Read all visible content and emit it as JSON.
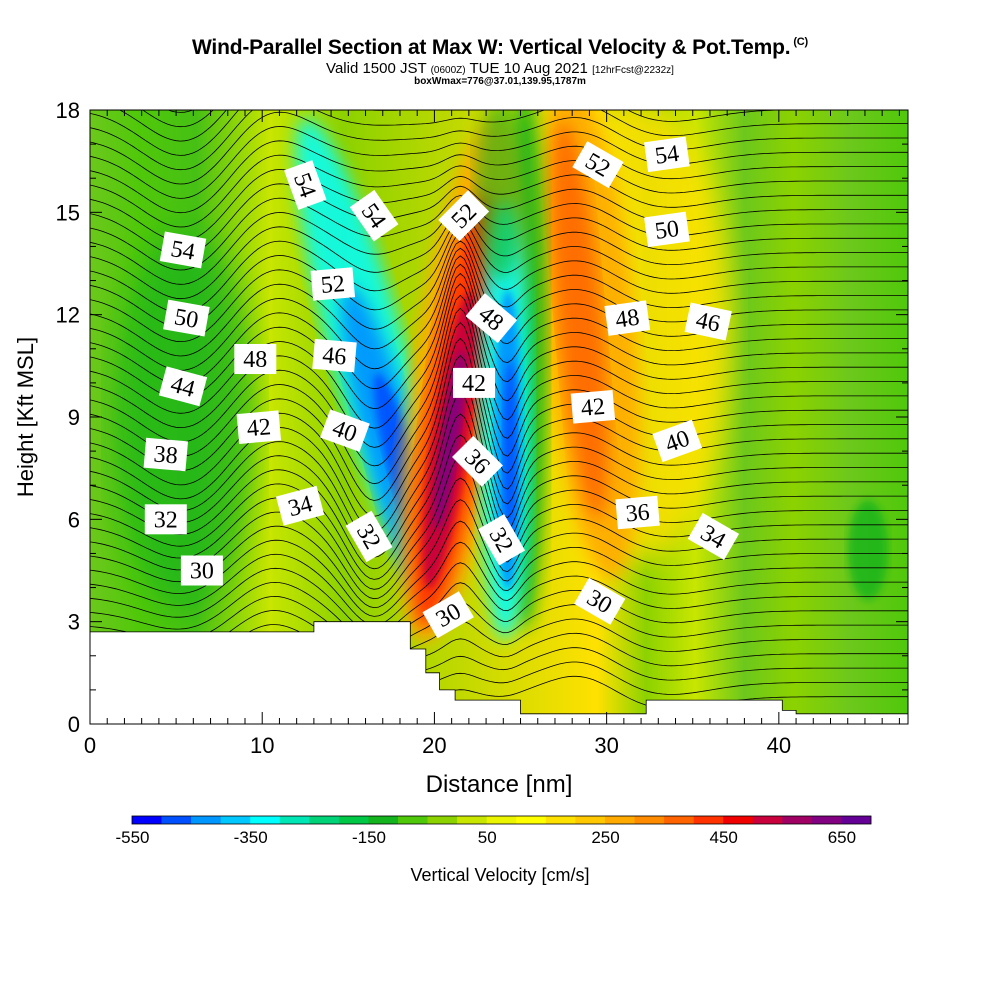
{
  "header": {
    "title": "Wind-Parallel Section at Max W: Vertical Velocity & Pot.Temp.",
    "copyright": "(C)",
    "valid_prefix": "Valid 1500 JST",
    "valid_utc": "(0600Z)",
    "valid_date": "TUE 10 Aug 2021",
    "forecast": "[12hrFcst@2232z]",
    "box_info": "boxWmax=776@37.01,139.95,1787m"
  },
  "chart_data": {
    "type": "heatmap",
    "xlabel": "Distance [nm]",
    "ylabel": "Height [Kft MSL]",
    "xlim": [
      0,
      47.5
    ],
    "ylim": [
      0,
      18
    ],
    "xticks": [
      0,
      10,
      20,
      30,
      40
    ],
    "yticks": [
      0,
      3,
      6,
      9,
      12,
      15,
      18
    ],
    "colorbar": {
      "label": "Vertical Velocity [cm/s]",
      "tick_labels": [
        -550,
        -350,
        -150,
        50,
        250,
        450,
        650
      ],
      "colors": [
        "#0000ff",
        "#0050ff",
        "#0096ff",
        "#00c8ff",
        "#00ffff",
        "#00e6b4",
        "#00d278",
        "#00c846",
        "#14b41e",
        "#50c80a",
        "#8cd200",
        "#c8e600",
        "#ebf500",
        "#ffff00",
        "#ffe100",
        "#ffc800",
        "#ffaa00",
        "#ff8c00",
        "#ff6400",
        "#ff3200",
        "#f00000",
        "#c8003c",
        "#a00064",
        "#820082",
        "#640096"
      ]
    },
    "terrain_kft": [
      [
        0,
        2.7
      ],
      [
        13,
        2.7
      ],
      [
        13,
        3.0
      ],
      [
        18.6,
        3.0
      ],
      [
        18.6,
        2.2
      ],
      [
        19.5,
        2.2
      ],
      [
        19.5,
        1.5
      ],
      [
        20.3,
        1.5
      ],
      [
        20.3,
        1.0
      ],
      [
        21.2,
        1.0
      ],
      [
        21.2,
        0.7
      ],
      [
        25,
        0.7
      ],
      [
        25,
        0.3
      ],
      [
        32.3,
        0.3
      ],
      [
        32.3,
        0.7
      ],
      [
        40.2,
        0.7
      ],
      [
        40.2,
        0.4
      ],
      [
        41,
        0.4
      ],
      [
        41,
        0.3
      ],
      [
        47.5,
        0.3
      ]
    ],
    "theta_labels": [
      {
        "text": "54",
        "x": 12.5,
        "y": 15.8,
        "rot": 70
      },
      {
        "text": "54",
        "x": 16.5,
        "y": 14.9,
        "rot": 55
      },
      {
        "text": "54",
        "x": 5.4,
        "y": 13.9,
        "rot": 10
      },
      {
        "text": "52",
        "x": 14.1,
        "y": 12.9,
        "rot": -5
      },
      {
        "text": "52",
        "x": 21.7,
        "y": 14.9,
        "rot": -45
      },
      {
        "text": "52",
        "x": 29.5,
        "y": 16.4,
        "rot": 30
      },
      {
        "text": "54",
        "x": 33.5,
        "y": 16.7,
        "rot": -8
      },
      {
        "text": "50",
        "x": 33.5,
        "y": 14.5,
        "rot": -8
      },
      {
        "text": "50",
        "x": 5.6,
        "y": 11.9,
        "rot": 10
      },
      {
        "text": "48",
        "x": 9.6,
        "y": 10.7,
        "rot": 0
      },
      {
        "text": "46",
        "x": 14.2,
        "y": 10.8,
        "rot": 5
      },
      {
        "text": "48",
        "x": 23.3,
        "y": 11.9,
        "rot": 40
      },
      {
        "text": "48",
        "x": 31.2,
        "y": 11.9,
        "rot": -8
      },
      {
        "text": "46",
        "x": 35.9,
        "y": 11.8,
        "rot": 12
      },
      {
        "text": "44",
        "x": 5.4,
        "y": 9.9,
        "rot": 15
      },
      {
        "text": "42",
        "x": 9.8,
        "y": 8.7,
        "rot": -5
      },
      {
        "text": "40",
        "x": 14.8,
        "y": 8.6,
        "rot": 20
      },
      {
        "text": "42",
        "x": 22.3,
        "y": 10.0,
        "rot": 0
      },
      {
        "text": "42",
        "x": 29.2,
        "y": 9.3,
        "rot": -5
      },
      {
        "text": "40",
        "x": 34.1,
        "y": 8.3,
        "rot": -20
      },
      {
        "text": "38",
        "x": 4.4,
        "y": 7.9,
        "rot": 5
      },
      {
        "text": "36",
        "x": 22.5,
        "y": 7.7,
        "rot": 45
      },
      {
        "text": "36",
        "x": 31.8,
        "y": 6.2,
        "rot": -5
      },
      {
        "text": "34",
        "x": 12.2,
        "y": 6.4,
        "rot": -15
      },
      {
        "text": "34",
        "x": 36.2,
        "y": 5.5,
        "rot": 30
      },
      {
        "text": "32",
        "x": 4.4,
        "y": 6.0,
        "rot": 0
      },
      {
        "text": "32",
        "x": 16.2,
        "y": 5.5,
        "rot": 60
      },
      {
        "text": "32",
        "x": 23.9,
        "y": 5.4,
        "rot": 60
      },
      {
        "text": "30",
        "x": 6.5,
        "y": 4.5,
        "rot": 0
      },
      {
        "text": "30",
        "x": 20.8,
        "y": 3.2,
        "rot": -30
      },
      {
        "text": "30",
        "x": 29.6,
        "y": 3.6,
        "rot": 30
      }
    ]
  }
}
